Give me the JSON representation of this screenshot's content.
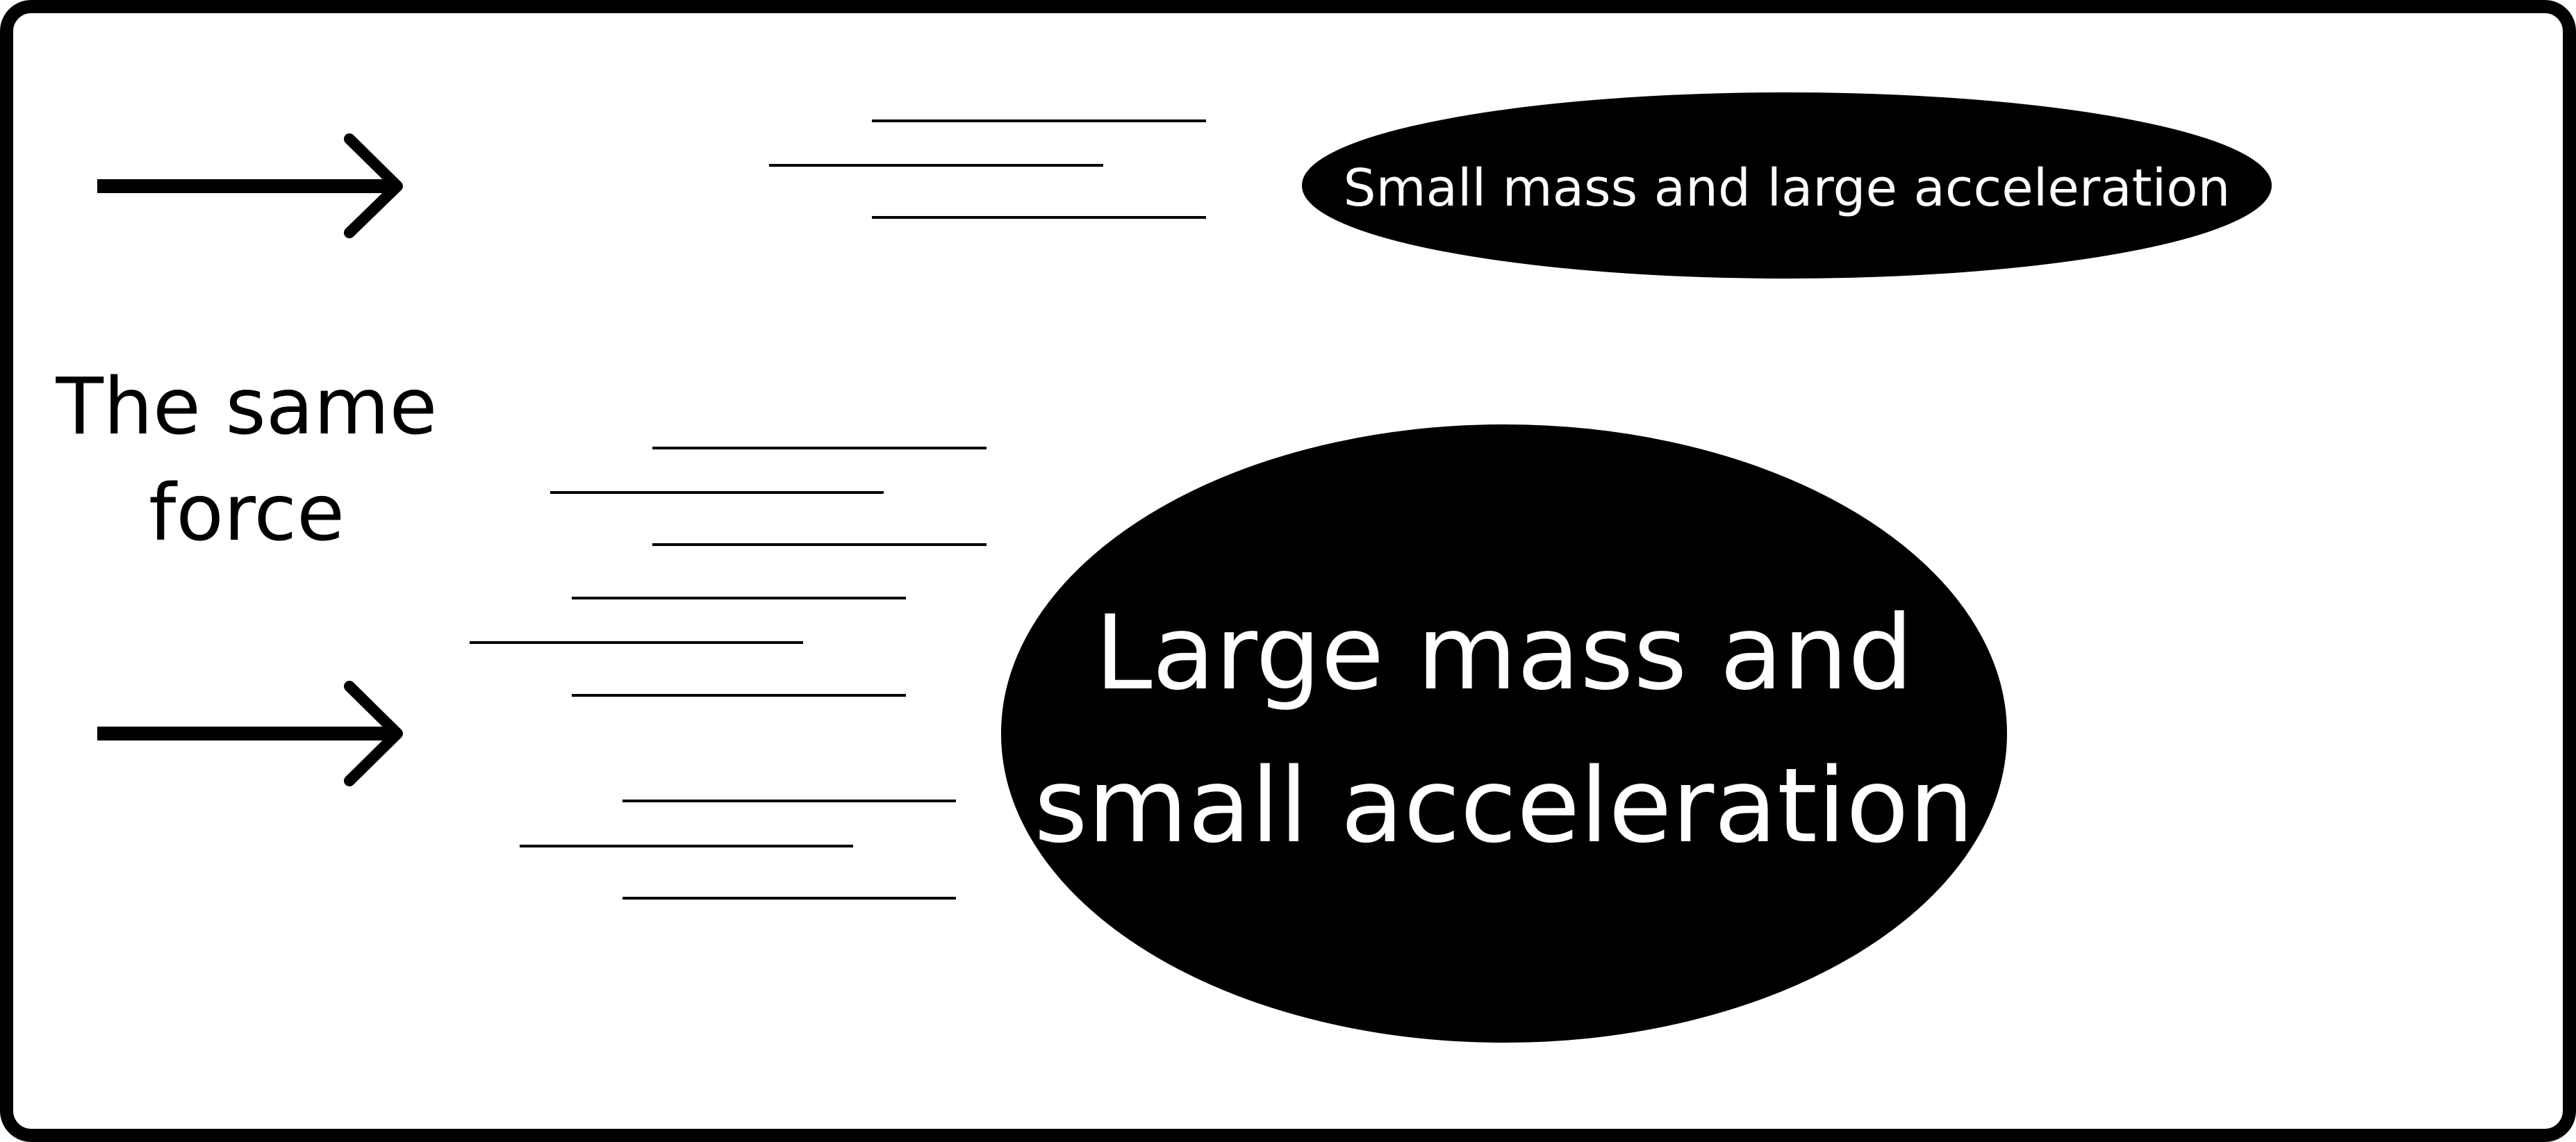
{
  "labels": {
    "force_line1": "The same",
    "force_line2": "force",
    "small_body": "Small mass and large acceleration",
    "large_body_line1": "Large mass and",
    "large_body_line2": "small acceleration"
  },
  "colors": {
    "background": "#ffffff",
    "ink": "#000000",
    "body_fill": "#000000",
    "body_text": "#ffffff"
  },
  "icons": [
    "force-arrow-icon",
    "force-arrow-icon"
  ]
}
